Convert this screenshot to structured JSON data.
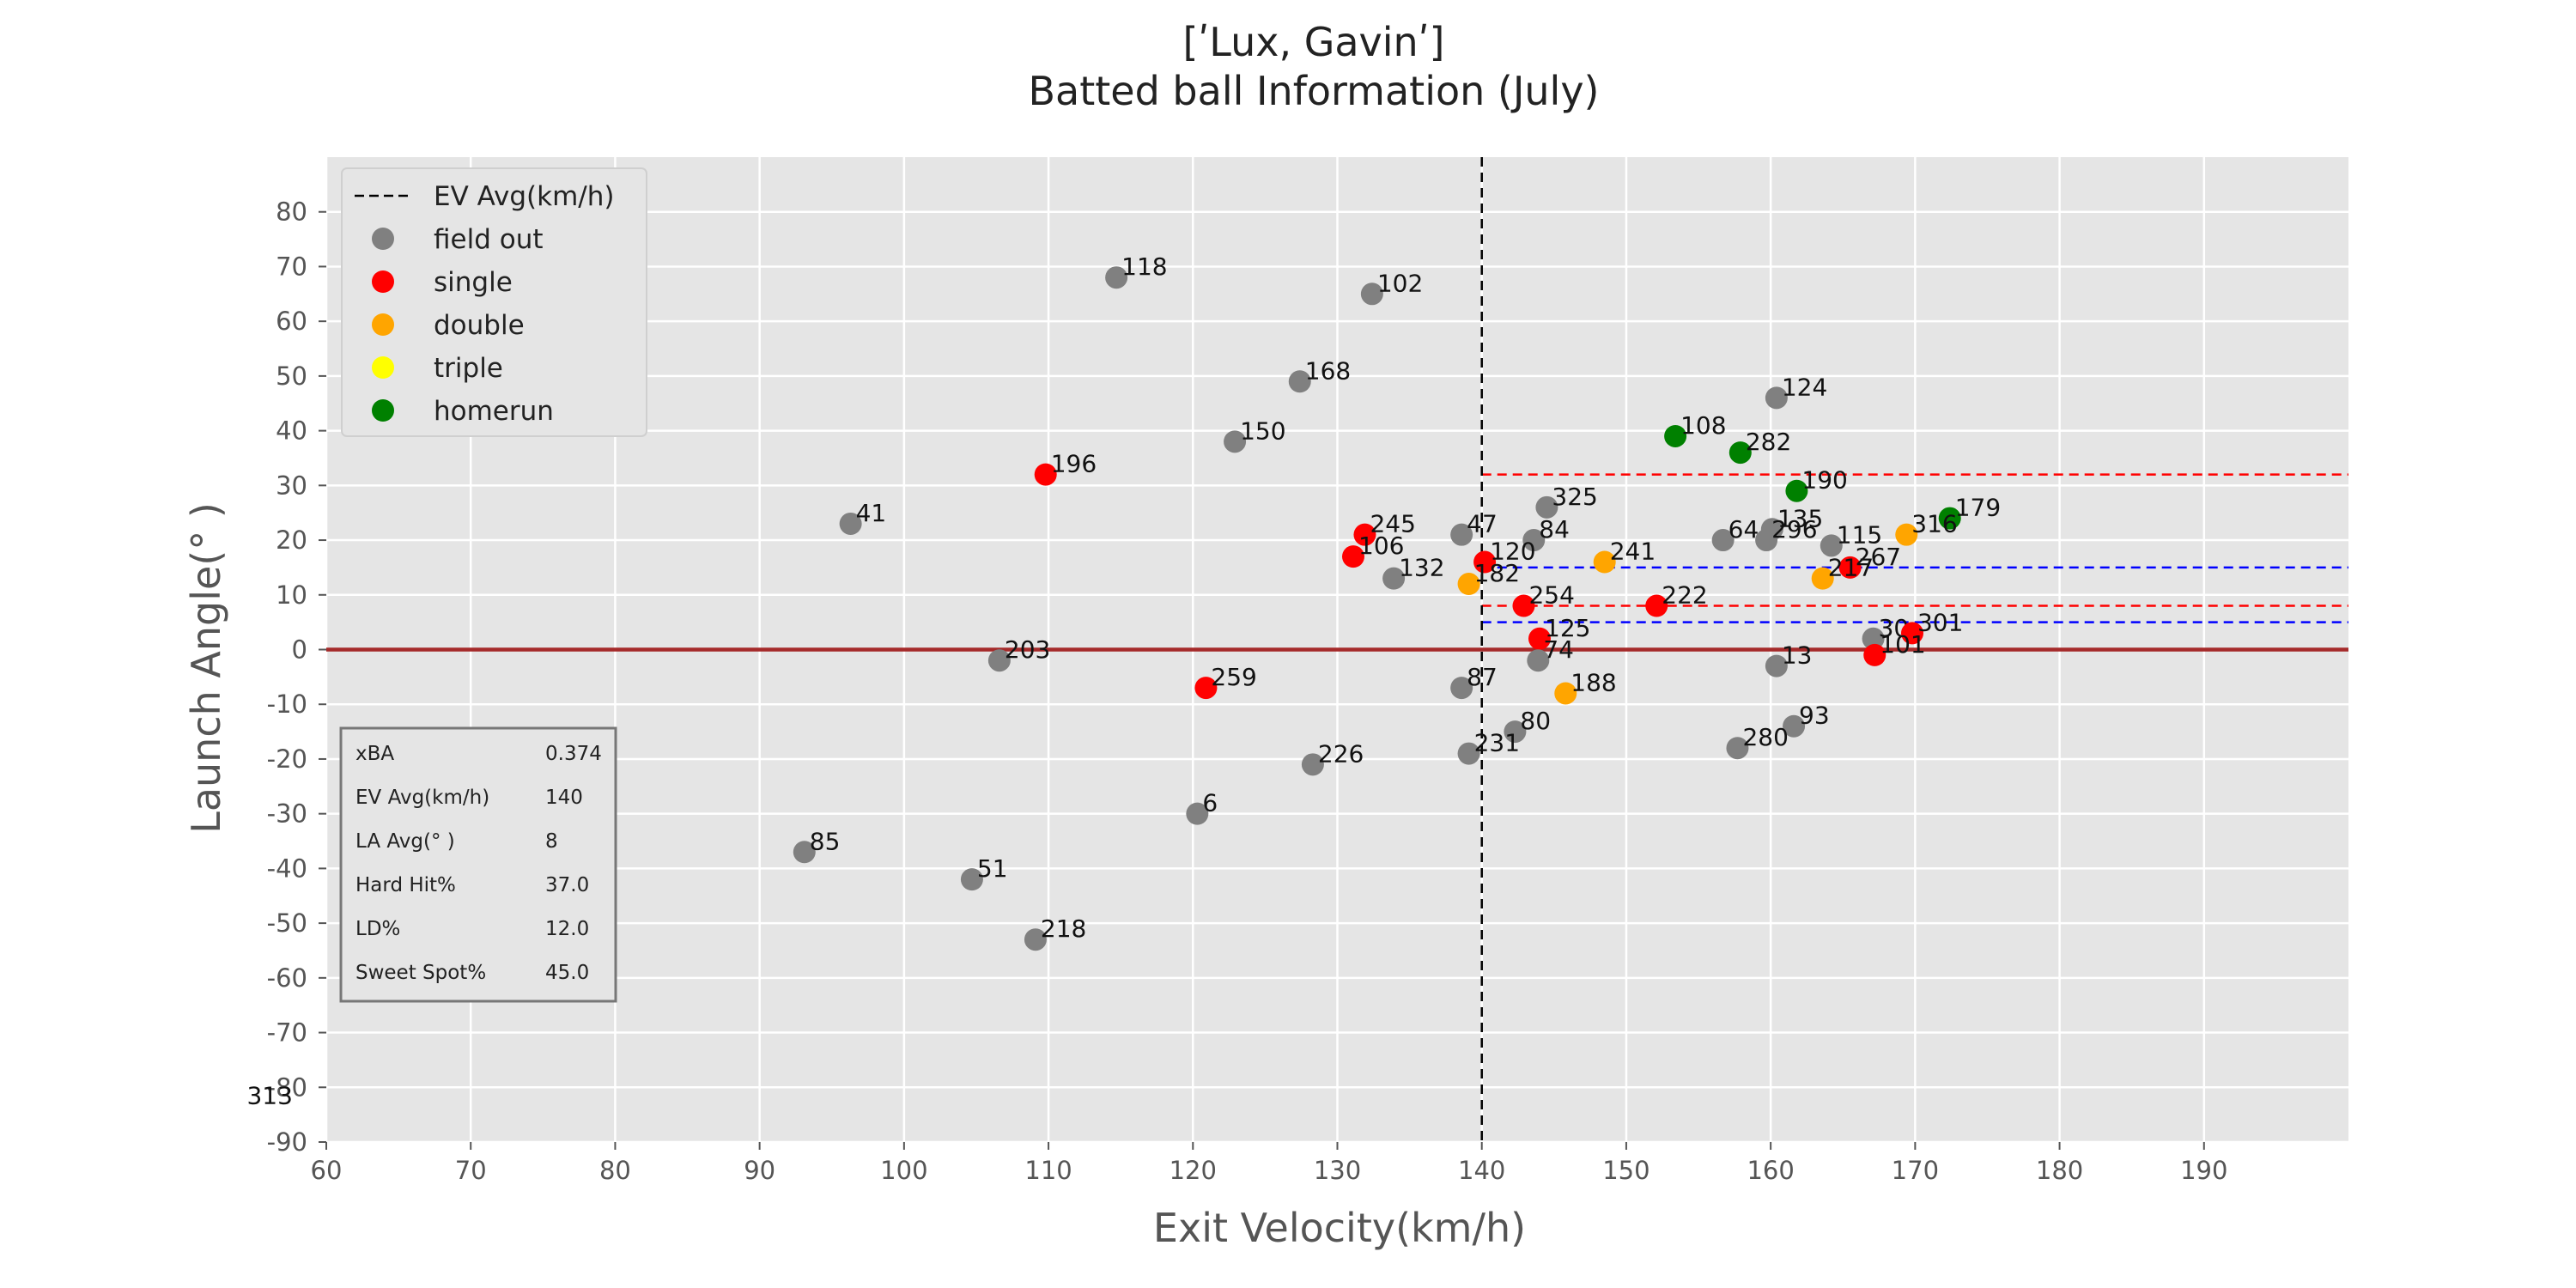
{
  "chart_data": {
    "type": "scatter",
    "title": [
      "[ʹLux, Gavinʹ]",
      "Batted ball Information (July)"
    ],
    "xlabel": "Exit Velocity(km/h)",
    "ylabel": "Launch Angle(° )",
    "xlim": [
      60,
      200
    ],
    "ylim": [
      -90,
      90
    ],
    "xticks": [
      60,
      70,
      80,
      90,
      100,
      110,
      120,
      130,
      140,
      150,
      160,
      170,
      180,
      190
    ],
    "yticks": [
      80,
      70,
      60,
      50,
      40,
      30,
      20,
      10,
      0,
      -10,
      -20,
      -30,
      -40,
      -50,
      -60,
      -70,
      -80,
      -90
    ],
    "grid": true,
    "background": "#e5e5e5",
    "legend_position": "top-left",
    "legend": [
      {
        "label": "EV Avg(km/h)",
        "kind": "dashed-line",
        "color": "#000000"
      },
      {
        "label": "field out",
        "kind": "marker",
        "color": "#808080"
      },
      {
        "label": "single",
        "kind": "marker",
        "color": "#ff0000"
      },
      {
        "label": "double",
        "kind": "marker",
        "color": "#ffa500"
      },
      {
        "label": "triple",
        "kind": "marker",
        "color": "#ffff00"
      },
      {
        "label": "homerun",
        "kind": "marker",
        "color": "#008000"
      }
    ],
    "colors": {
      "field out": "#808080",
      "single": "#ff0000",
      "double": "#ffa500",
      "triple": "#ffff00",
      "homerun": "#008000"
    },
    "ev_avg_line": 140,
    "zero_line": {
      "y": 0,
      "color": "#a52a2a"
    },
    "ranges": [
      {
        "y": 32,
        "x_from": 140,
        "color": "#ff0000"
      },
      {
        "y": 8,
        "x_from": 140,
        "color": "#ff0000"
      },
      {
        "y": 15,
        "x_from": 140,
        "color": "#0000ff"
      },
      {
        "y": 5,
        "x_from": 140,
        "color": "#0000ff"
      }
    ],
    "points": [
      {
        "id": "118",
        "x": 114.7,
        "y": 68,
        "type": "field out"
      },
      {
        "id": "102",
        "x": 132.4,
        "y": 65,
        "type": "field out"
      },
      {
        "id": "168",
        "x": 127.4,
        "y": 49,
        "type": "field out"
      },
      {
        "id": "150",
        "x": 122.9,
        "y": 38,
        "type": "field out"
      },
      {
        "id": "196",
        "x": 109.8,
        "y": 32,
        "type": "single"
      },
      {
        "id": "41",
        "x": 96.3,
        "y": 23,
        "type": "field out"
      },
      {
        "id": "124",
        "x": 160.4,
        "y": 46,
        "type": "field out"
      },
      {
        "id": "108",
        "x": 153.4,
        "y": 39,
        "type": "homerun"
      },
      {
        "id": "282",
        "x": 157.9,
        "y": 36,
        "type": "homerun"
      },
      {
        "id": "190",
        "x": 161.8,
        "y": 29,
        "type": "homerun"
      },
      {
        "id": "179",
        "x": 172.4,
        "y": 24,
        "type": "homerun"
      },
      {
        "id": "325",
        "x": 144.5,
        "y": 26,
        "type": "field out"
      },
      {
        "id": "245",
        "x": 131.9,
        "y": 21,
        "type": "single"
      },
      {
        "id": "47",
        "x": 138.6,
        "y": 21,
        "type": "field out"
      },
      {
        "id": "84",
        "x": 143.6,
        "y": 20,
        "type": "field out"
      },
      {
        "id": "106",
        "x": 131.1,
        "y": 17,
        "type": "single"
      },
      {
        "id": "120",
        "x": 140.2,
        "y": 16,
        "type": "single"
      },
      {
        "id": "132",
        "x": 133.9,
        "y": 13,
        "type": "field out"
      },
      {
        "id": "182",
        "x": 139.1,
        "y": 12,
        "type": "double"
      },
      {
        "id": "241",
        "x": 148.5,
        "y": 16,
        "type": "double"
      },
      {
        "id": "64",
        "x": 156.7,
        "y": 20,
        "type": "field out"
      },
      {
        "id": "135",
        "x": 160.1,
        "y": 22,
        "type": "field out"
      },
      {
        "id": "296",
        "x": 159.7,
        "y": 20,
        "type": "field out"
      },
      {
        "id": "115",
        "x": 164.2,
        "y": 19,
        "type": "field out"
      },
      {
        "id": "316",
        "x": 169.4,
        "y": 21,
        "type": "double"
      },
      {
        "id": "267",
        "x": 165.5,
        "y": 15,
        "type": "single"
      },
      {
        "id": "217",
        "x": 163.6,
        "y": 13,
        "type": "double"
      },
      {
        "id": "254",
        "x": 142.9,
        "y": 8,
        "type": "single"
      },
      {
        "id": "222",
        "x": 152.1,
        "y": 8,
        "type": "single"
      },
      {
        "id": "125",
        "x": 144.0,
        "y": 2,
        "type": "single"
      },
      {
        "id": "74",
        "x": 143.9,
        "y": -2,
        "type": "field out"
      },
      {
        "id": "30",
        "x": 167.1,
        "y": 2,
        "type": "field out"
      },
      {
        "id": "301",
        "x": 169.8,
        "y": 3,
        "type": "single"
      },
      {
        "id": "101",
        "x": 167.2,
        "y": -1,
        "type": "single"
      },
      {
        "id": "13",
        "x": 160.4,
        "y": -3,
        "type": "field out"
      },
      {
        "id": "203",
        "x": 106.6,
        "y": -2,
        "type": "field out"
      },
      {
        "id": "259",
        "x": 120.9,
        "y": -7,
        "type": "single"
      },
      {
        "id": "87",
        "x": 138.6,
        "y": -7,
        "type": "field out"
      },
      {
        "id": "188",
        "x": 145.8,
        "y": -8,
        "type": "double"
      },
      {
        "id": "80",
        "x": 142.3,
        "y": -15,
        "type": "field out"
      },
      {
        "id": "231",
        "x": 139.1,
        "y": -19,
        "type": "field out"
      },
      {
        "id": "93",
        "x": 161.6,
        "y": -14,
        "type": "field out"
      },
      {
        "id": "280",
        "x": 157.7,
        "y": -18,
        "type": "field out"
      },
      {
        "id": "226",
        "x": 128.3,
        "y": -21,
        "type": "field out"
      },
      {
        "id": "6",
        "x": 120.3,
        "y": -30,
        "type": "field out"
      },
      {
        "id": "85",
        "x": 93.1,
        "y": -37,
        "type": "field out"
      },
      {
        "id": "51",
        "x": 104.7,
        "y": -42,
        "type": "field out"
      },
      {
        "id": "218",
        "x": 109.1,
        "y": -53,
        "type": "field out"
      }
    ],
    "outside_labels": [
      {
        "text": "313",
        "x": 54.5,
        "y": -83
      }
    ],
    "stats": [
      {
        "label": "xBA",
        "value": "0.374"
      },
      {
        "label": "EV Avg(km/h)",
        "value": "140"
      },
      {
        "label": "LA Avg(° )",
        "value": "8"
      },
      {
        "label": "Hard Hit%",
        "value": "37.0"
      },
      {
        "label": "LD%",
        "value": "12.0"
      },
      {
        "label": "Sweet Spot%",
        "value": "45.0"
      }
    ]
  }
}
